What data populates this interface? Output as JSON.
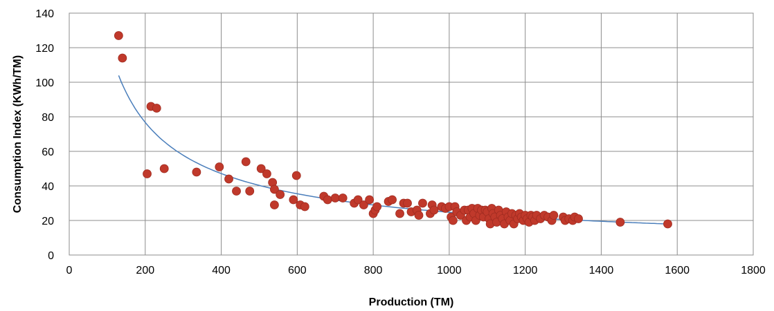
{
  "chart_data": {
    "type": "scatter",
    "title": "",
    "xlabel": "Production (TM)",
    "ylabel": "Consumption Index  (KWh/TM)",
    "xlim": [
      0,
      1800
    ],
    "ylim": [
      0,
      140
    ],
    "xticks": [
      0,
      200,
      400,
      600,
      800,
      1000,
      1200,
      1400,
      1600,
      1800
    ],
    "yticks": [
      0,
      20,
      40,
      60,
      80,
      100,
      120,
      140
    ],
    "grid": true,
    "legend": "none",
    "point_color": "#c0392b",
    "trend_color": "#4a7ebb",
    "trendline": "power",
    "points": [
      [
        130,
        127
      ],
      [
        140,
        114
      ],
      [
        205,
        47
      ],
      [
        215,
        86
      ],
      [
        230,
        85
      ],
      [
        250,
        50
      ],
      [
        335,
        48
      ],
      [
        395,
        51
      ],
      [
        420,
        44
      ],
      [
        440,
        37
      ],
      [
        465,
        54
      ],
      [
        475,
        37
      ],
      [
        505,
        50
      ],
      [
        520,
        47
      ],
      [
        535,
        42
      ],
      [
        540,
        38
      ],
      [
        540,
        29
      ],
      [
        555,
        35
      ],
      [
        590,
        32
      ],
      [
        598,
        46
      ],
      [
        608,
        29
      ],
      [
        620,
        28
      ],
      [
        670,
        34
      ],
      [
        680,
        32
      ],
      [
        700,
        33
      ],
      [
        720,
        33
      ],
      [
        750,
        30
      ],
      [
        760,
        32
      ],
      [
        775,
        29
      ],
      [
        790,
        32
      ],
      [
        800,
        24
      ],
      [
        805,
        26
      ],
      [
        810,
        28
      ],
      [
        840,
        31
      ],
      [
        850,
        32
      ],
      [
        870,
        24
      ],
      [
        880,
        30
      ],
      [
        890,
        30
      ],
      [
        900,
        25
      ],
      [
        915,
        26
      ],
      [
        920,
        23
      ],
      [
        930,
        30
      ],
      [
        950,
        24
      ],
      [
        955,
        29
      ],
      [
        960,
        26
      ],
      [
        980,
        28
      ],
      [
        990,
        27
      ],
      [
        1000,
        28
      ],
      [
        1005,
        22
      ],
      [
        1010,
        20
      ],
      [
        1015,
        28
      ],
      [
        1020,
        25
      ],
      [
        1030,
        23
      ],
      [
        1040,
        26
      ],
      [
        1045,
        20
      ],
      [
        1050,
        26
      ],
      [
        1055,
        22
      ],
      [
        1060,
        27
      ],
      [
        1065,
        24
      ],
      [
        1070,
        20
      ],
      [
        1075,
        27
      ],
      [
        1080,
        23
      ],
      [
        1085,
        26
      ],
      [
        1090,
        22
      ],
      [
        1095,
        26
      ],
      [
        1100,
        25
      ],
      [
        1105,
        21
      ],
      [
        1108,
        18
      ],
      [
        1112,
        27
      ],
      [
        1115,
        24
      ],
      [
        1120,
        22
      ],
      [
        1125,
        19
      ],
      [
        1130,
        26
      ],
      [
        1135,
        23
      ],
      [
        1140,
        21
      ],
      [
        1145,
        18
      ],
      [
        1150,
        25
      ],
      [
        1155,
        22
      ],
      [
        1160,
        20
      ],
      [
        1165,
        24
      ],
      [
        1170,
        18
      ],
      [
        1175,
        23
      ],
      [
        1180,
        21
      ],
      [
        1185,
        24
      ],
      [
        1190,
        22
      ],
      [
        1195,
        20
      ],
      [
        1200,
        23
      ],
      [
        1205,
        21
      ],
      [
        1210,
        19
      ],
      [
        1215,
        23
      ],
      [
        1220,
        22
      ],
      [
        1225,
        20
      ],
      [
        1230,
        23
      ],
      [
        1240,
        21
      ],
      [
        1250,
        23
      ],
      [
        1260,
        22
      ],
      [
        1270,
        20
      ],
      [
        1275,
        23
      ],
      [
        1300,
        22
      ],
      [
        1305,
        20
      ],
      [
        1315,
        21
      ],
      [
        1325,
        20
      ],
      [
        1330,
        22
      ],
      [
        1340,
        21
      ],
      [
        1450,
        19
      ],
      [
        1575,
        18
      ]
    ]
  }
}
